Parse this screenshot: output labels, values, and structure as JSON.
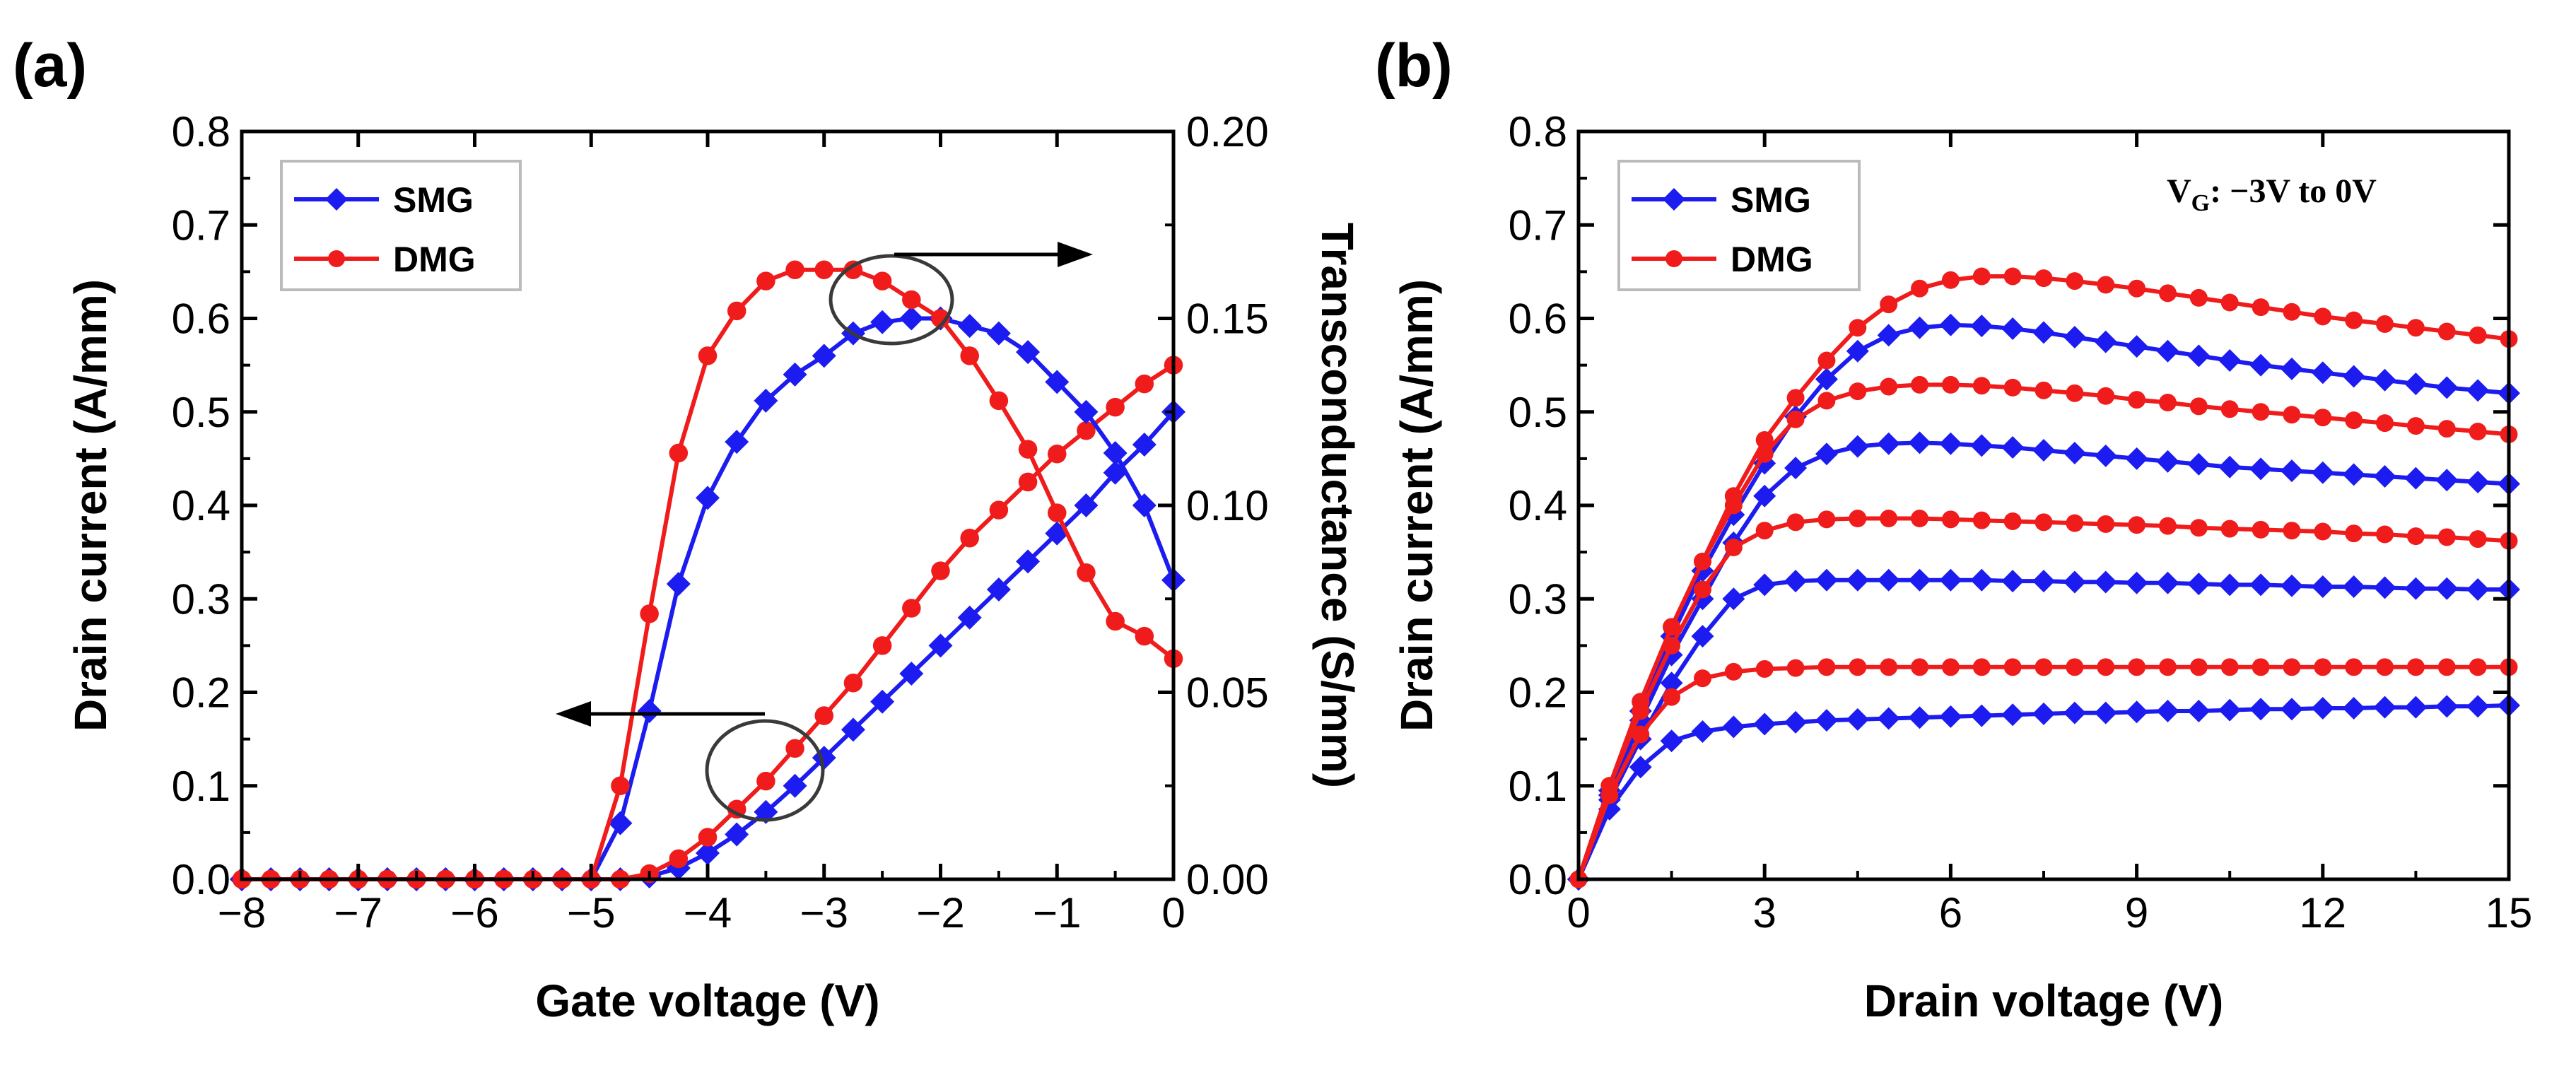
{
  "chart_data": [
    {
      "panel": "(a)",
      "type": "line",
      "title": "",
      "xlabel": "Gate voltage (V)",
      "ylabel": "Drain current (A/mm)",
      "y2label": "Transconductance (S/mm)",
      "xlim": [
        -8,
        0
      ],
      "ylim": [
        0,
        0.8
      ],
      "y2lim": [
        0,
        0.2
      ],
      "xticks": [
        "−8",
        "−7",
        "−6",
        "−5",
        "−4",
        "−3",
        "−2",
        "−1",
        "0"
      ],
      "yticks": [
        "0.0",
        "0.1",
        "0.2",
        "0.3",
        "0.4",
        "0.5",
        "0.6",
        "0.7",
        "0.8"
      ],
      "y2ticks": [
        "0.00",
        "0.05",
        "0.10",
        "0.15",
        "0.20"
      ],
      "legend": {
        "position": "top-left",
        "entries": [
          "SMG",
          "DMG"
        ]
      },
      "annotations": [
        "left arrow: drain current curves",
        "right arrow: transconductance curves"
      ],
      "series": [
        {
          "name": "SMG",
          "kind": "drain current",
          "axis": "left",
          "color": "#1c1cf0",
          "marker": "diamond",
          "x": [
            -8,
            -7.75,
            -7.5,
            -7.25,
            -7,
            -6.75,
            -6.5,
            -6.25,
            -6,
            -5.75,
            -5.5,
            -5.25,
            -5,
            -4.75,
            -4.5,
            -4.25,
            -4,
            -3.75,
            -3.5,
            -3.25,
            -3,
            -2.75,
            -2.5,
            -2.25,
            -2,
            -1.75,
            -1.5,
            -1.25,
            -1,
            -0.75,
            -0.5,
            -0.25,
            0
          ],
          "y": [
            0,
            0,
            0,
            0,
            0,
            0,
            0,
            0,
            0,
            0,
            0,
            0,
            0,
            0,
            0.003,
            0.012,
            0.028,
            0.048,
            0.072,
            0.1,
            0.13,
            0.16,
            0.19,
            0.22,
            0.25,
            0.28,
            0.31,
            0.34,
            0.37,
            0.4,
            0.435,
            0.465,
            0.5
          ]
        },
        {
          "name": "DMG",
          "kind": "drain current",
          "axis": "left",
          "color": "#f01c1c",
          "marker": "circle",
          "x": [
            -8,
            -7.75,
            -7.5,
            -7.25,
            -7,
            -6.75,
            -6.5,
            -6.25,
            -6,
            -5.75,
            -5.5,
            -5.25,
            -5,
            -4.75,
            -4.5,
            -4.25,
            -4,
            -3.75,
            -3.5,
            -3.25,
            -3,
            -2.75,
            -2.5,
            -2.25,
            -2,
            -1.75,
            -1.5,
            -1.25,
            -1,
            -0.75,
            -0.5,
            -0.25,
            0
          ],
          "y": [
            0,
            0,
            0,
            0,
            0,
            0,
            0,
            0,
            0,
            0,
            0,
            0,
            0,
            0,
            0.006,
            0.022,
            0.045,
            0.075,
            0.105,
            0.14,
            0.175,
            0.21,
            0.25,
            0.29,
            0.33,
            0.365,
            0.395,
            0.425,
            0.455,
            0.48,
            0.505,
            0.53,
            0.55
          ]
        },
        {
          "name": "SMG",
          "kind": "transconductance",
          "axis": "right",
          "color": "#1c1cf0",
          "marker": "diamond",
          "x": [
            -8,
            -7.75,
            -7.5,
            -7.25,
            -7,
            -6.75,
            -6.5,
            -6.25,
            -6,
            -5.75,
            -5.5,
            -5.25,
            -5,
            -4.75,
            -4.5,
            -4.25,
            -4,
            -3.75,
            -3.5,
            -3.25,
            -3,
            -2.75,
            -2.5,
            -2.25,
            -2,
            -1.75,
            -1.5,
            -1.25,
            -1,
            -0.75,
            -0.5,
            -0.25,
            0
          ],
          "y": [
            0,
            0,
            0,
            0,
            0,
            0,
            0,
            0,
            0,
            0,
            0,
            0,
            0,
            0.015,
            0.045,
            0.079,
            0.102,
            0.117,
            0.128,
            0.135,
            0.14,
            0.146,
            0.149,
            0.15,
            0.15,
            0.148,
            0.146,
            0.141,
            0.133,
            0.125,
            0.114,
            0.1,
            0.08
          ]
        },
        {
          "name": "DMG",
          "kind": "transconductance",
          "axis": "right",
          "color": "#f01c1c",
          "marker": "circle",
          "x": [
            -8,
            -7.75,
            -7.5,
            -7.25,
            -7,
            -6.75,
            -6.5,
            -6.25,
            -6,
            -5.75,
            -5.5,
            -5.25,
            -5,
            -4.75,
            -4.5,
            -4.25,
            -4,
            -3.75,
            -3.5,
            -3.25,
            -3,
            -2.75,
            -2.5,
            -2.25,
            -2,
            -1.75,
            -1.5,
            -1.25,
            -1,
            -0.75,
            -0.5,
            -0.25,
            0
          ],
          "y": [
            0,
            0,
            0,
            0,
            0,
            0,
            0,
            0,
            0,
            0,
            0,
            0,
            0,
            0.025,
            0.071,
            0.114,
            0.14,
            0.152,
            0.16,
            0.163,
            0.163,
            0.163,
            0.16,
            0.155,
            0.15,
            0.14,
            0.128,
            0.115,
            0.098,
            0.082,
            0.069,
            0.065,
            0.059
          ]
        }
      ]
    },
    {
      "panel": "(b)",
      "type": "line",
      "title": "",
      "xlabel": "Drain voltage (V)",
      "ylabel": "Drain current (A/mm)",
      "xlim": [
        0,
        15
      ],
      "ylim": [
        0,
        0.8
      ],
      "xticks": [
        "0",
        "3",
        "6",
        "9",
        "12",
        "15"
      ],
      "yticks": [
        "0.0",
        "0.1",
        "0.2",
        "0.3",
        "0.4",
        "0.5",
        "0.6",
        "0.7",
        "0.8"
      ],
      "legend": {
        "position": "top-left",
        "entries": [
          "SMG",
          "DMG"
        ]
      },
      "annotation": {
        "main": "V",
        "sub": "G",
        "rest": ": −3V to 0V"
      },
      "x": [
        0,
        0.5,
        1,
        1.5,
        2,
        2.5,
        3,
        3.5,
        4,
        4.5,
        5,
        5.5,
        6,
        6.5,
        7,
        7.5,
        8,
        8.5,
        9,
        9.5,
        10,
        10.5,
        11,
        11.5,
        12,
        12.5,
        13,
        13.5,
        14,
        14.5,
        15
      ],
      "series": [
        {
          "name": "SMG",
          "VG": "-3V",
          "color": "#1c1cf0",
          "marker": "diamond",
          "y": [
            0,
            0.075,
            0.12,
            0.148,
            0.158,
            0.163,
            0.166,
            0.168,
            0.17,
            0.171,
            0.172,
            0.173,
            0.174,
            0.175,
            0.176,
            0.177,
            0.178,
            0.178,
            0.179,
            0.18,
            0.18,
            0.181,
            0.182,
            0.182,
            0.183,
            0.183,
            0.184,
            0.184,
            0.185,
            0.185,
            0.186
          ]
        },
        {
          "name": "SMG",
          "VG": "-2V",
          "color": "#1c1cf0",
          "marker": "diamond",
          "y": [
            0,
            0.085,
            0.15,
            0.21,
            0.26,
            0.3,
            0.315,
            0.319,
            0.32,
            0.32,
            0.32,
            0.32,
            0.32,
            0.32,
            0.319,
            0.319,
            0.318,
            0.318,
            0.317,
            0.317,
            0.316,
            0.315,
            0.315,
            0.314,
            0.313,
            0.313,
            0.312,
            0.311,
            0.311,
            0.31,
            0.31
          ]
        },
        {
          "name": "SMG",
          "VG": "-1V",
          "color": "#1c1cf0",
          "marker": "diamond",
          "y": [
            0,
            0.09,
            0.17,
            0.24,
            0.3,
            0.36,
            0.41,
            0.44,
            0.455,
            0.463,
            0.466,
            0.467,
            0.466,
            0.464,
            0.462,
            0.459,
            0.456,
            0.453,
            0.45,
            0.447,
            0.444,
            0.441,
            0.439,
            0.437,
            0.435,
            0.433,
            0.431,
            0.429,
            0.427,
            0.425,
            0.423
          ]
        },
        {
          "name": "SMG",
          "VG": "0V",
          "color": "#1c1cf0",
          "marker": "diamond",
          "y": [
            0,
            0.095,
            0.18,
            0.26,
            0.33,
            0.39,
            0.445,
            0.495,
            0.535,
            0.565,
            0.582,
            0.59,
            0.593,
            0.592,
            0.589,
            0.585,
            0.58,
            0.575,
            0.57,
            0.565,
            0.56,
            0.555,
            0.55,
            0.546,
            0.542,
            0.538,
            0.534,
            0.53,
            0.526,
            0.523,
            0.52
          ]
        },
        {
          "name": "DMG",
          "VG": "-3V",
          "color": "#f01c1c",
          "marker": "circle",
          "y": [
            0,
            0.09,
            0.155,
            0.195,
            0.215,
            0.222,
            0.225,
            0.226,
            0.227,
            0.227,
            0.227,
            0.227,
            0.227,
            0.227,
            0.227,
            0.227,
            0.227,
            0.227,
            0.227,
            0.227,
            0.227,
            0.227,
            0.227,
            0.227,
            0.227,
            0.227,
            0.227,
            0.227,
            0.227,
            0.227,
            0.227
          ]
        },
        {
          "name": "DMG",
          "VG": "-2V",
          "color": "#f01c1c",
          "marker": "circle",
          "y": [
            0,
            0.1,
            0.18,
            0.25,
            0.31,
            0.355,
            0.373,
            0.382,
            0.385,
            0.386,
            0.386,
            0.386,
            0.385,
            0.384,
            0.383,
            0.382,
            0.381,
            0.38,
            0.379,
            0.378,
            0.376,
            0.375,
            0.374,
            0.373,
            0.372,
            0.37,
            0.369,
            0.367,
            0.366,
            0.364,
            0.362
          ]
        },
        {
          "name": "DMG",
          "VG": "-1V",
          "color": "#f01c1c",
          "marker": "circle",
          "y": [
            0,
            0.1,
            0.19,
            0.27,
            0.34,
            0.4,
            0.455,
            0.492,
            0.512,
            0.522,
            0.527,
            0.529,
            0.529,
            0.528,
            0.526,
            0.523,
            0.52,
            0.517,
            0.513,
            0.51,
            0.506,
            0.503,
            0.5,
            0.497,
            0.494,
            0.491,
            0.488,
            0.485,
            0.482,
            0.479,
            0.476
          ]
        },
        {
          "name": "DMG",
          "VG": "0V",
          "color": "#f01c1c",
          "marker": "circle",
          "y": [
            0,
            0.1,
            0.19,
            0.27,
            0.34,
            0.41,
            0.47,
            0.515,
            0.555,
            0.59,
            0.615,
            0.632,
            0.641,
            0.645,
            0.645,
            0.643,
            0.64,
            0.636,
            0.632,
            0.627,
            0.622,
            0.617,
            0.612,
            0.607,
            0.602,
            0.598,
            0.594,
            0.59,
            0.586,
            0.582,
            0.578
          ]
        }
      ]
    }
  ]
}
